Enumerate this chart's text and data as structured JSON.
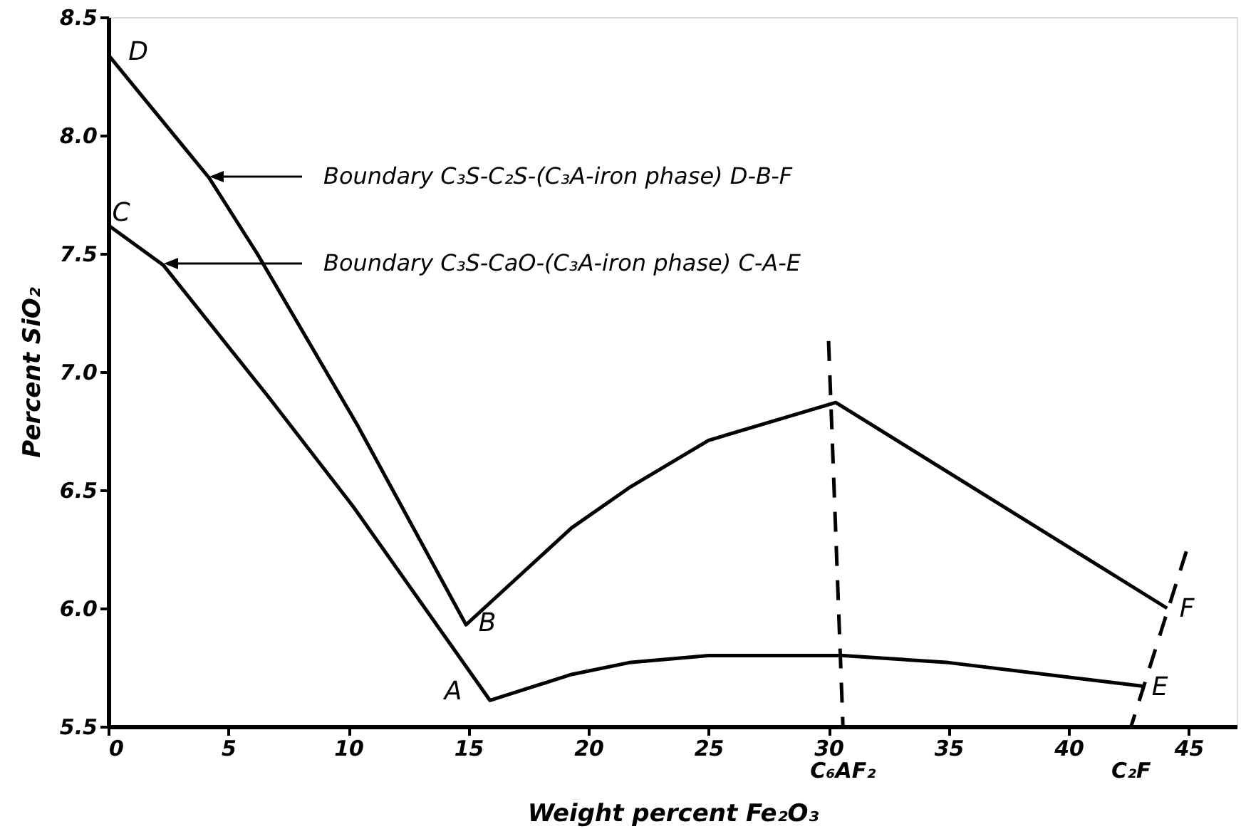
{
  "chart_data": {
    "type": "line",
    "xlabel": "Weight percent Fe₂O₃",
    "ylabel": "Percent SiO₂",
    "xlim": [
      0,
      47
    ],
    "ylim": [
      5.5,
      8.5
    ],
    "xticks": [
      0,
      5,
      10,
      15,
      20,
      25,
      30,
      35,
      40,
      45
    ],
    "yticks": [
      {
        "value": 5.5,
        "label": "5.5"
      },
      {
        "value": 6,
        "label": "6.0"
      },
      {
        "value": 6.5,
        "label": "6.5"
      },
      {
        "value": 7,
        "label": "7.0"
      },
      {
        "value": 7.5,
        "label": "7.5"
      },
      {
        "value": 8,
        "label": "8.0"
      },
      {
        "value": 8.5,
        "label": "8.5"
      }
    ],
    "grid": false,
    "series": [
      {
        "color": "#000000",
        "line_style": "solid",
        "x": [
          0,
          4.2,
          6.2,
          10.4,
          14.9,
          19.3,
          21.7,
          25,
          30.3,
          44.1
        ],
        "values": [
          8.34,
          7.82,
          7.5,
          6.77,
          5.93,
          6.34,
          6.51,
          6.71,
          6.87,
          6.0
        ]
      },
      {
        "color": "#000000",
        "line_style": "solid",
        "x": [
          0,
          2.3,
          6.7,
          10.2,
          15.9,
          19.3,
          21.7,
          25,
          30.6,
          35,
          43.1
        ],
        "values": [
          7.62,
          7.45,
          6.89,
          6.43,
          5.61,
          5.72,
          5.77,
          5.8,
          5.8,
          5.77,
          5.67
        ]
      },
      {
        "color": "#000000",
        "line_style": "dashed",
        "x": [
          30.0,
          30.6
        ],
        "values": [
          7.13,
          5.5
        ]
      },
      {
        "color": "#000000",
        "line_style": "dashed",
        "x": [
          44.9,
          42.6
        ],
        "values": [
          6.24,
          5.5
        ]
      }
    ],
    "annotations": [
      "Boundary C₃S-C₂S-(C₃A-iron phase) D-B-F",
      "Boundary C₃S-CaO-(C₃A-iron phase) C-A-E",
      "D",
      "C",
      "B",
      "A",
      "E",
      "F",
      {
        "text": "C₆AF₂",
        "x": 30.6,
        "y": 5.5
      },
      {
        "text": "C₂F",
        "x": 42.6,
        "y": 5.5
      }
    ]
  }
}
